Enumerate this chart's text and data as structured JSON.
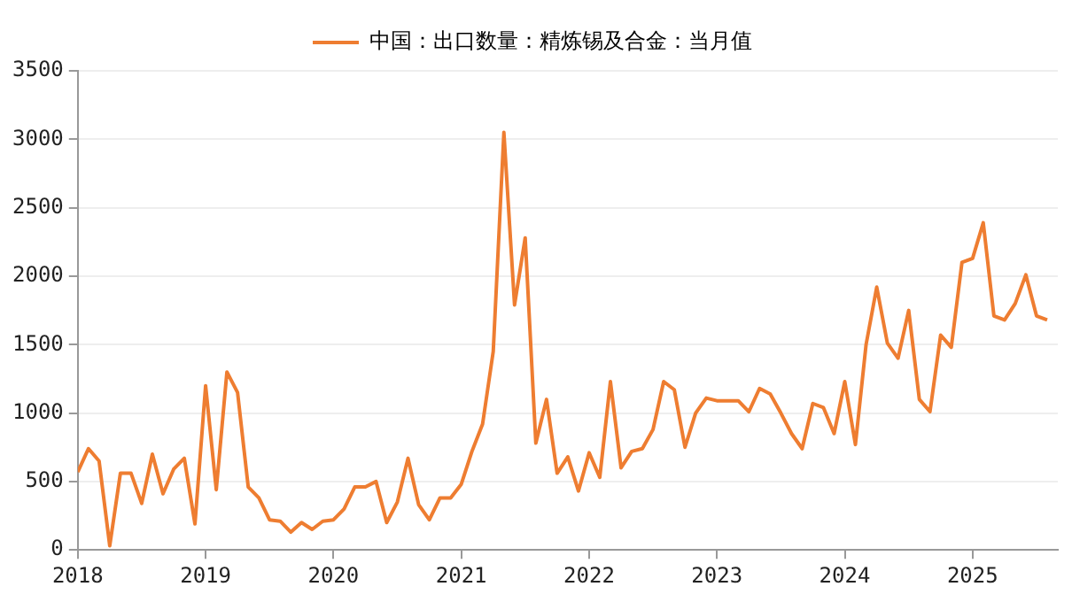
{
  "chart_data": {
    "type": "line",
    "x": [
      "2018-01",
      "2018-02",
      "2018-03",
      "2018-04",
      "2018-05",
      "2018-06",
      "2018-07",
      "2018-08",
      "2018-09",
      "2018-10",
      "2018-11",
      "2018-12",
      "2019-01",
      "2019-02",
      "2019-03",
      "2019-04",
      "2019-05",
      "2019-06",
      "2019-07",
      "2019-08",
      "2019-09",
      "2019-10",
      "2019-11",
      "2019-12",
      "2020-01",
      "2020-02",
      "2020-03",
      "2020-04",
      "2020-05",
      "2020-06",
      "2020-07",
      "2020-08",
      "2020-09",
      "2020-10",
      "2020-11",
      "2020-12",
      "2021-01",
      "2021-02",
      "2021-03",
      "2021-04",
      "2021-05",
      "2021-06",
      "2021-07",
      "2021-08",
      "2021-09",
      "2021-10",
      "2021-11",
      "2021-12",
      "2022-01",
      "2022-02",
      "2022-03",
      "2022-04",
      "2022-05",
      "2022-06",
      "2022-07",
      "2022-08",
      "2022-09",
      "2022-10",
      "2022-11",
      "2022-12",
      "2023-01",
      "2023-02",
      "2023-03",
      "2023-04",
      "2023-05",
      "2023-06",
      "2023-07",
      "2023-08",
      "2023-09",
      "2023-10",
      "2023-11",
      "2023-12",
      "2024-01",
      "2024-02",
      "2024-03",
      "2024-04",
      "2024-05",
      "2024-06",
      "2024-07",
      "2024-08",
      "2024-09",
      "2024-10",
      "2024-11",
      "2024-12",
      "2025-01",
      "2025-02",
      "2025-03",
      "2025-04",
      "2025-05",
      "2025-06",
      "2025-07",
      "2025-08"
    ],
    "series": [
      {
        "name": "中国：出口数量：精炼锡及合金：当月值",
        "color": "#ee7d31",
        "values": [
          570,
          740,
          650,
          30,
          560,
          560,
          340,
          700,
          410,
          590,
          670,
          190,
          1200,
          440,
          1300,
          1150,
          460,
          380,
          220,
          210,
          130,
          200,
          150,
          210,
          220,
          300,
          460,
          460,
          500,
          200,
          350,
          670,
          330,
          220,
          380,
          380,
          480,
          720,
          920,
          1450,
          3050,
          1790,
          2280,
          780,
          1100,
          560,
          680,
          430,
          710,
          530,
          1230,
          600,
          720,
          740,
          880,
          1230,
          1170,
          750,
          1000,
          1110,
          1090,
          1090,
          1090,
          1010,
          1180,
          1140,
          1000,
          850,
          740,
          1070,
          1040,
          850,
          1230,
          770,
          1500,
          1920,
          1510,
          1400,
          1750,
          1100,
          1010,
          1570,
          1480,
          2100,
          2130,
          2390,
          1710,
          1680,
          1800,
          2010,
          1710,
          1680
        ]
      }
    ],
    "xlim": [
      "2018-01",
      "2025-09"
    ],
    "xticks": [
      {
        "value": "2018",
        "label": "2018"
      },
      {
        "value": "2019",
        "label": "2019"
      },
      {
        "value": "2020",
        "label": "2020"
      },
      {
        "value": "2021",
        "label": "2021"
      },
      {
        "value": "2022",
        "label": "2022"
      },
      {
        "value": "2023",
        "label": "2023"
      },
      {
        "value": "2024",
        "label": "2024"
      },
      {
        "value": "2025",
        "label": "2025"
      }
    ],
    "ylim": [
      0,
      3500
    ],
    "yticks": [
      0,
      500,
      1000,
      1500,
      2000,
      2500,
      3000,
      3500
    ],
    "grid": "y",
    "legend": "top",
    "marker": "none",
    "line_style": "solid"
  }
}
